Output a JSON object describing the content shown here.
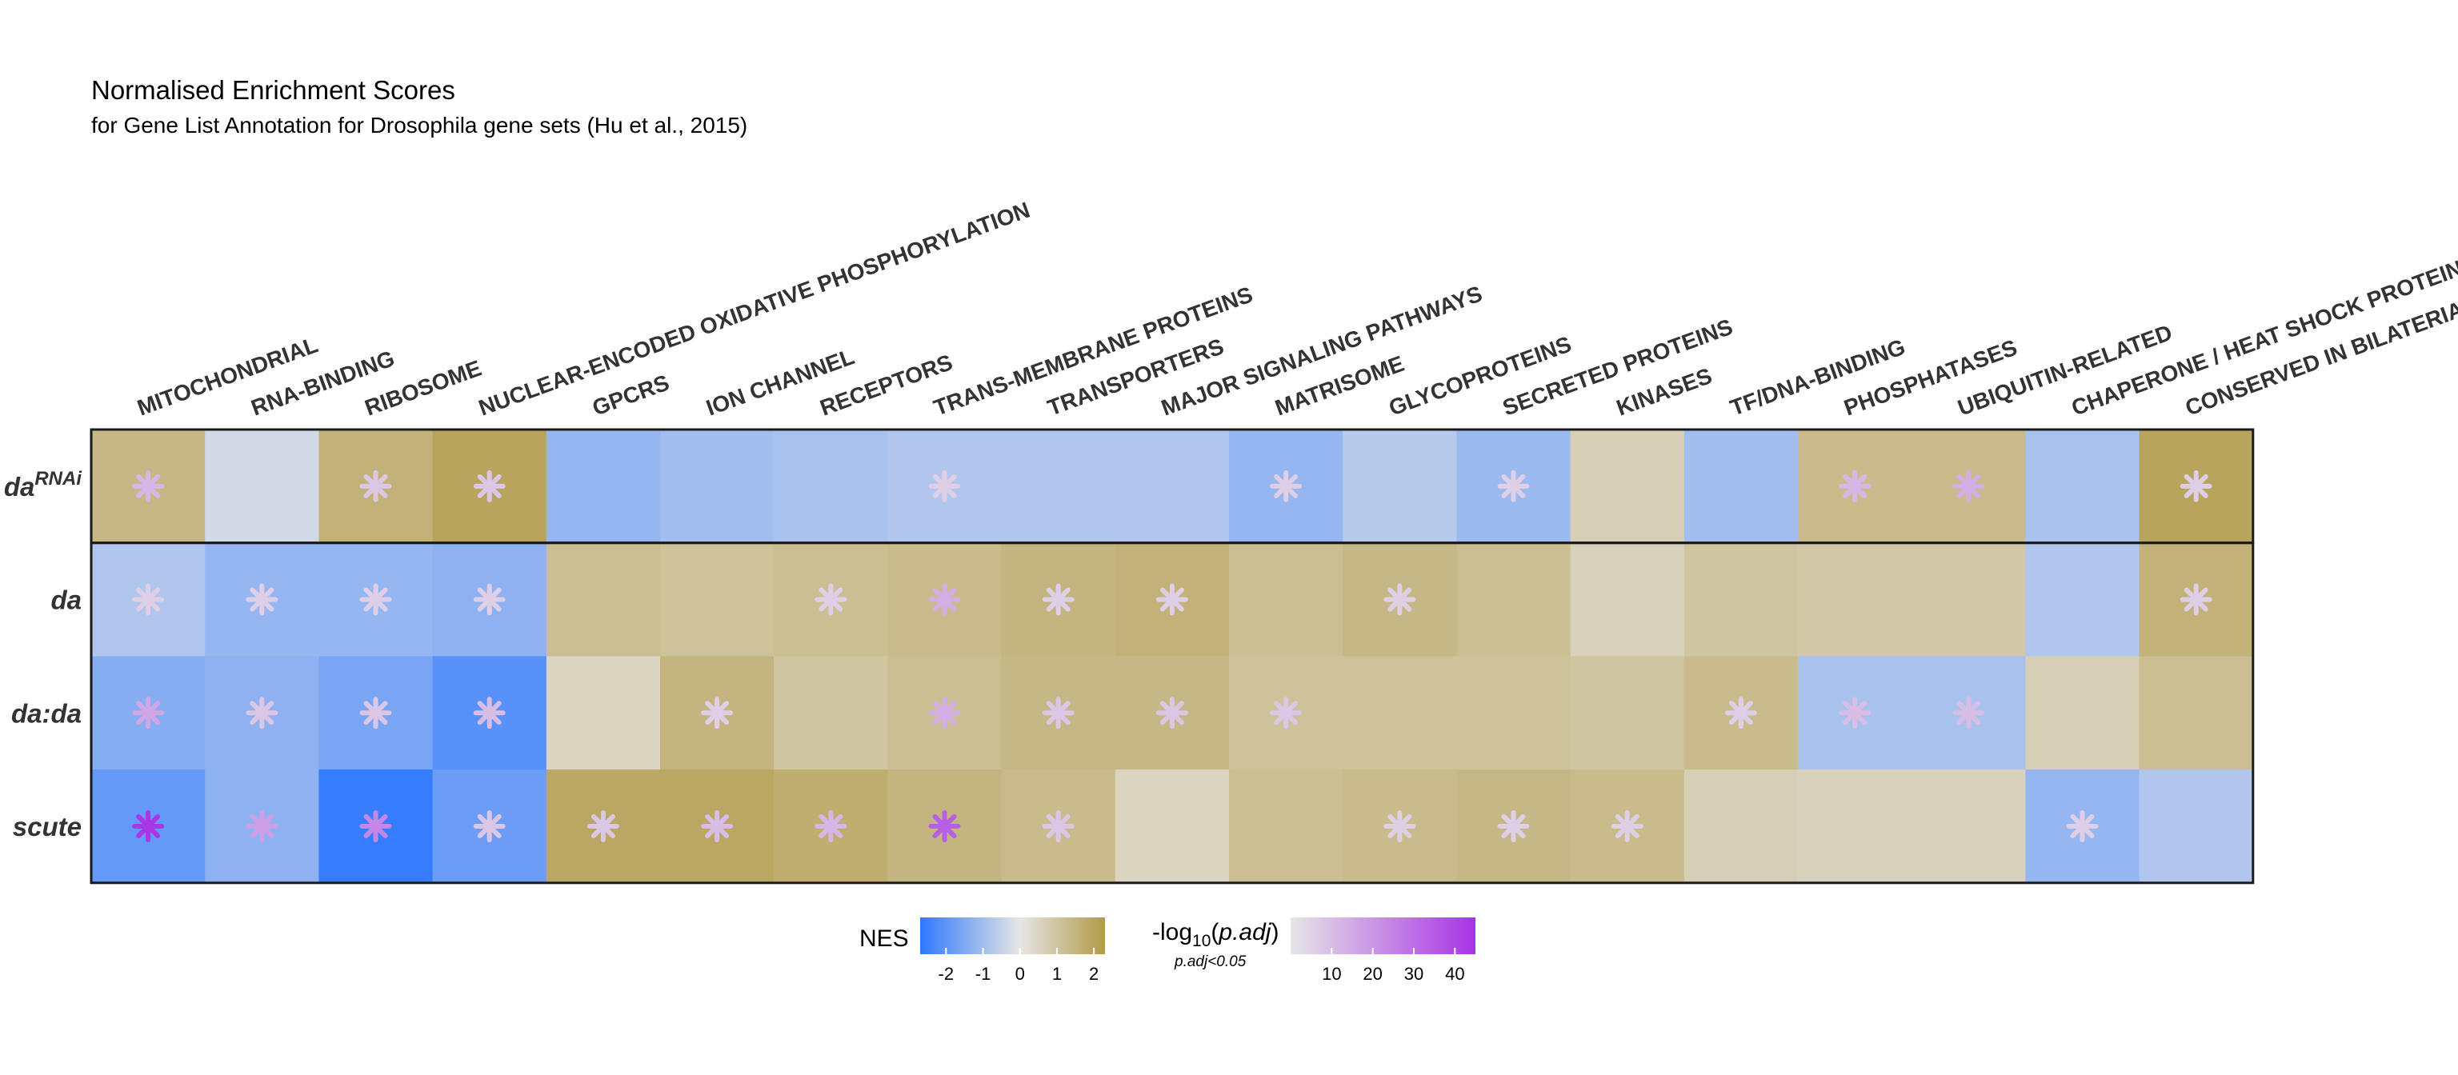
{
  "chart_data": {
    "type": "heatmap",
    "title": "Normalised Enrichment Scores",
    "subtitle": "for Gene List Annotation for Drosophila gene sets (Hu et al., 2015)",
    "columns": [
      "MITOCHONDRIAL",
      "RNA-BINDING",
      "RIBOSOME",
      "NUCLEAR-ENCODED OXIDATIVE PHOSPHORYLATION",
      "GPCRS",
      "ION CHANNEL",
      "RECEPTORS",
      "TRANS-MEMBRANE PROTEINS",
      "TRANSPORTERS",
      "MAJOR SIGNALING PATHWAYS",
      "MATRISOME",
      "GLYCOPROTEINS",
      "SECRETED PROTEINS",
      "KINASES",
      "TF/DNA-BINDING",
      "PHOSPHATASES",
      "UBIQUITIN-RELATED",
      "CHAPERONE / HEAT SHOCK PROTEINS",
      "CONSERVED IN BILATERIANS"
    ],
    "rows": [
      {
        "label": "da",
        "superscript": "RNAi"
      },
      {
        "label": "da",
        "superscript": ""
      },
      {
        "label": "da:da",
        "superscript": ""
      },
      {
        "label": "scute",
        "superscript": ""
      }
    ],
    "nes": [
      [
        1.4,
        -0.3,
        1.6,
        2.0,
        -1.2,
        -1.0,
        -0.9,
        -0.8,
        -0.8,
        -0.8,
        -1.2,
        -0.7,
        -1.1,
        0.7,
        -1.0,
        1.3,
        1.3,
        -0.9,
        2.0
      ],
      [
        -0.8,
        -1.2,
        -1.2,
        -1.3,
        1.2,
        1.1,
        1.2,
        1.3,
        1.5,
        1.6,
        1.2,
        1.4,
        1.2,
        0.6,
        1.0,
        0.9,
        0.9,
        -0.8,
        1.6
      ],
      [
        -1.4,
        -1.3,
        -1.6,
        -2.1,
        0.5,
        1.5,
        1.0,
        1.2,
        1.4,
        1.4,
        1.1,
        1.1,
        1.1,
        1.0,
        1.3,
        -0.9,
        -0.9,
        0.7,
        1.2
      ],
      [
        -1.9,
        -1.3,
        -2.6,
        -1.8,
        1.9,
        1.9,
        1.7,
        1.5,
        1.3,
        0.5,
        1.2,
        1.3,
        1.4,
        1.3,
        0.7,
        0.6,
        0.6,
        -1.2,
        -0.8
      ]
    ],
    "significance": [
      [
        12,
        null,
        8,
        8,
        null,
        null,
        null,
        6,
        null,
        null,
        6,
        null,
        6,
        null,
        null,
        12,
        14,
        null,
        6
      ],
      [
        6,
        6,
        6,
        6,
        null,
        null,
        6,
        14,
        6,
        6,
        null,
        6,
        null,
        null,
        null,
        null,
        null,
        null,
        6
      ],
      [
        16,
        8,
        8,
        10,
        null,
        6,
        null,
        14,
        8,
        8,
        8,
        null,
        null,
        null,
        6,
        10,
        10,
        null,
        null
      ],
      [
        44,
        18,
        24,
        8,
        8,
        10,
        12,
        34,
        8,
        null,
        null,
        6,
        6,
        6,
        null,
        null,
        null,
        6,
        null
      ]
    ],
    "legend": {
      "nes": {
        "title": "NES",
        "ticks": [
          -2,
          -1,
          0,
          1,
          2
        ],
        "range": [
          -2.7,
          2.3
        ],
        "colors": {
          "low": "#2F79FF",
          "mid": "#E6E6E4",
          "high": "#B29A49"
        }
      },
      "significance": {
        "title_prefix": "-log",
        "title_sub": "10",
        "title_arg": "p.adj",
        "note": "p.adj<0.05",
        "ticks": [
          10,
          20,
          30,
          40
        ],
        "range": [
          0,
          45
        ],
        "colors": {
          "low": "#E6E6E6",
          "high": "#A833E6"
        }
      }
    }
  }
}
